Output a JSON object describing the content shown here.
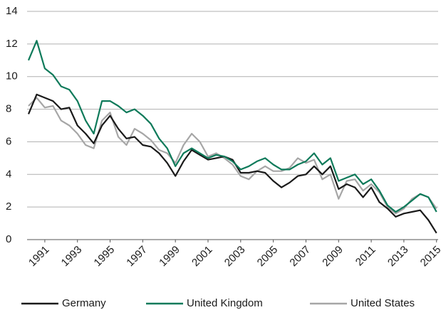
{
  "chart_data": {
    "type": "line",
    "x": [
      1990,
      1990.5,
      1991,
      1991.5,
      1992,
      1992.5,
      1993,
      1993.5,
      1994,
      1994.5,
      1995,
      1995.5,
      1996,
      1996.5,
      1997,
      1997.5,
      1998,
      1998.5,
      1999,
      1999.5,
      2000,
      2000.5,
      2001,
      2001.5,
      2002,
      2002.5,
      2003,
      2003.5,
      2004,
      2004.5,
      2005,
      2005.5,
      2006,
      2006.5,
      2007,
      2007.5,
      2008,
      2008.5,
      2009,
      2009.5,
      2010,
      2010.5,
      2011,
      2011.5,
      2012,
      2012.5,
      2013,
      2013.5,
      2014,
      2014.5,
      2015
    ],
    "series": [
      {
        "name": "Germany",
        "color": "#1a1a1a",
        "values": [
          7.7,
          8.9,
          8.7,
          8.5,
          8.0,
          8.1,
          7.0,
          6.5,
          5.9,
          7.0,
          7.6,
          6.8,
          6.2,
          6.3,
          5.8,
          5.7,
          5.3,
          4.7,
          3.9,
          4.8,
          5.5,
          5.2,
          4.9,
          5.0,
          5.1,
          4.9,
          4.1,
          4.1,
          4.2,
          4.1,
          3.6,
          3.2,
          3.5,
          3.9,
          4.0,
          4.5,
          4.0,
          4.5,
          3.1,
          3.4,
          3.2,
          2.6,
          3.2,
          2.3,
          1.9,
          1.4,
          1.6,
          1.7,
          1.8,
          1.2,
          0.4
        ]
      },
      {
        "name": "United Kingdom",
        "color": "#0e7a5a",
        "values": [
          11.0,
          12.2,
          10.5,
          10.1,
          9.4,
          9.2,
          8.5,
          7.3,
          6.5,
          8.5,
          8.5,
          8.2,
          7.8,
          8.0,
          7.6,
          7.1,
          6.2,
          5.6,
          4.5,
          5.3,
          5.6,
          5.3,
          5.0,
          5.2,
          5.1,
          4.8,
          4.3,
          4.5,
          4.8,
          5.0,
          4.6,
          4.3,
          4.3,
          4.6,
          4.8,
          5.3,
          4.6,
          5.0,
          3.6,
          3.8,
          4.0,
          3.4,
          3.7,
          3.0,
          2.1,
          1.7,
          2.0,
          2.4,
          2.8,
          2.6,
          1.7
        ]
      },
      {
        "name": "United States",
        "color": "#a6a6a6",
        "values": [
          8.2,
          8.7,
          8.1,
          8.2,
          7.3,
          7.0,
          6.5,
          5.8,
          5.6,
          7.3,
          7.8,
          6.3,
          5.8,
          6.8,
          6.5,
          6.1,
          5.5,
          5.3,
          4.7,
          5.8,
          6.5,
          6.0,
          5.1,
          5.3,
          5.0,
          4.6,
          3.9,
          3.7,
          4.2,
          4.5,
          4.2,
          4.2,
          4.4,
          5.0,
          4.7,
          4.9,
          3.7,
          4.0,
          2.5,
          3.6,
          3.7,
          3.0,
          3.4,
          2.9,
          2.0,
          1.6,
          1.9,
          2.5,
          2.8,
          2.6,
          1.9
        ]
      }
    ],
    "xlim": [
      1990,
      2015.1
    ],
    "xticks": [
      1991,
      1993,
      1995,
      1997,
      1999,
      2001,
      2003,
      2005,
      2007,
      2009,
      2011,
      2013,
      2015
    ],
    "ylim": [
      0,
      14
    ],
    "yticks": [
      0,
      2,
      4,
      6,
      8,
      10,
      12,
      14
    ],
    "grid": true
  }
}
